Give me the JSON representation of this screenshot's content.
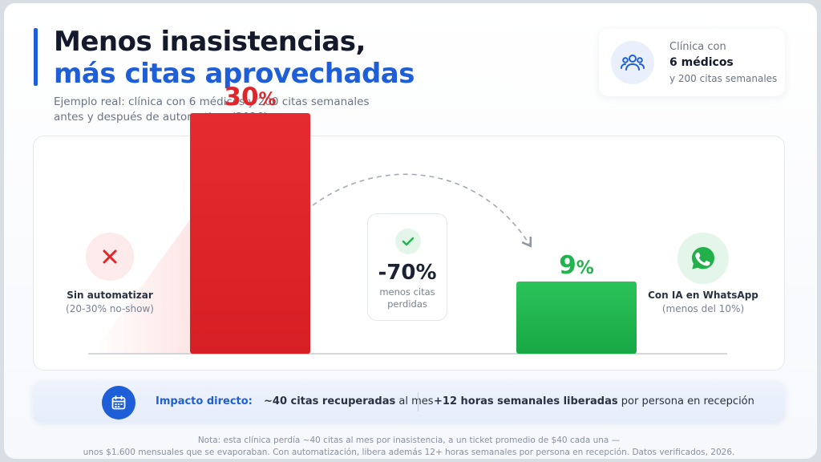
{
  "title": {
    "line1": "Menos inasistencias,",
    "line2": "más citas aprovechadas"
  },
  "subtitle": {
    "line1": "Ejemplo real: clínica con 6 médicos y 200 citas semanales",
    "line2": "antes y después de automatizar (2026)"
  },
  "info_card": {
    "icon": "users-icon",
    "line1": "Clínica con",
    "line2": "6 médicos",
    "line3": "y 200 citas semanales"
  },
  "chart_data": {
    "type": "bar",
    "categories": [
      "Sin automatizar",
      "Con IA en WhatsApp"
    ],
    "values": [
      30,
      9
    ],
    "value_labels": [
      {
        "num": "30",
        "unit": "%"
      },
      {
        "num": "9",
        "unit": "%"
      }
    ],
    "ylim": [
      0,
      35
    ],
    "grid": false,
    "legend": "none",
    "colors": [
      "#e0262a",
      "#1fb54c"
    ]
  },
  "left": {
    "icon": "close-icon",
    "label": "Sin automatizar",
    "sublabel": "(20-30% no-show)"
  },
  "right": {
    "icon": "whatsapp-icon",
    "label": "Con IA en WhatsApp",
    "sublabel": "(menos del 10%)"
  },
  "middle": {
    "icon": "check-icon",
    "value": "-70%",
    "text1": "menos citas",
    "text2": "perdidas"
  },
  "impact": {
    "icon": "calendar-icon",
    "label": "Impacto directo:",
    "item1_bold": "~40 citas recuperadas",
    "item1_rest": " al mes",
    "item2_bold": "+12 horas semanales liberadas",
    "item2_rest": " por persona en recepción"
  },
  "note": {
    "line1": "Nota: esta clínica perdía ~40 citas al mes por inasistencia, a un ticket promedio de $40 cada una —",
    "line2": "unos $1.600 mensuales que se evaporaban. Con automatización, libera además 12+ horas semanales por persona en recepción. Datos verificados, 2026."
  },
  "colors": {
    "accent": "#1e5fd8",
    "red": "#e0262a",
    "green": "#1fb54c"
  }
}
